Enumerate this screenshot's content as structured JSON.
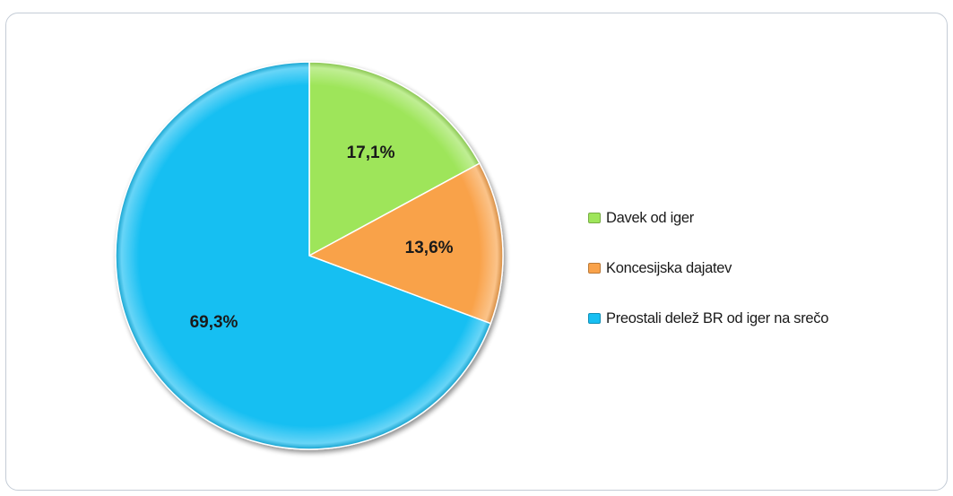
{
  "chart_data": {
    "type": "pie",
    "title": "",
    "slices": [
      {
        "label": "Davek od iger",
        "value": 17.1,
        "display": "17,1%",
        "color": "#9ee55a"
      },
      {
        "label": "Koncesijska dajatev",
        "value": 13.6,
        "display": "13,6%",
        "color": "#f9a24a"
      },
      {
        "label": "Preostali delež BR od iger na srečo",
        "value": 69.3,
        "display": "69,3%",
        "color": "#17bff2"
      }
    ],
    "legend_position": "right",
    "start_angle": "12 o'clock",
    "direction": "clockwise"
  },
  "colors": {
    "frame_border": "#c4ccd6",
    "label_text": "#1a1a1a"
  }
}
